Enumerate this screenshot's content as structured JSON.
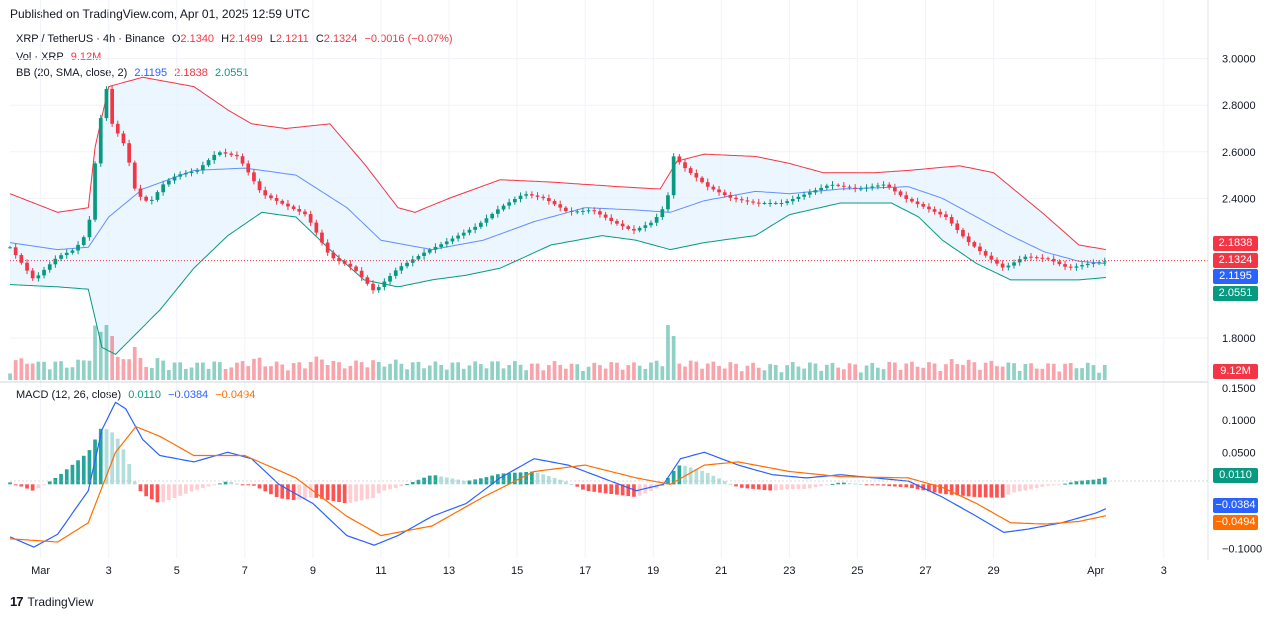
{
  "publish_text": "Published on TradingView.com, Apr 01, 2025 12:59 UTC",
  "brand": "TradingView",
  "legend": {
    "symbol": "XRP / TetherUS · 4h · Binance",
    "open_label": "O",
    "open": "2.1340",
    "high_label": "H",
    "high": "2.1499",
    "low_label": "L",
    "low": "2.1211",
    "close_label": "C",
    "close": "2.1324",
    "change": "−0.0016 (−0.07%)",
    "vol_label": "Vol · XRP",
    "vol": "9.12M",
    "bb_label": "BB (20, SMA, close, 2)",
    "bb_basis": "2.1195",
    "bb_upper": "2.1838",
    "bb_lower": "2.0551",
    "macd_label": "MACD (12, 26, close)",
    "macd": "0.0110",
    "macd_line": "−0.0384",
    "macd_signal": "−0.0494"
  },
  "badges": {
    "bb_upper": "2.1838",
    "price": "2.1324",
    "bb_basis": "2.1195",
    "bb_lower": "2.0551",
    "vol": "9.12M",
    "hist": "0.0110",
    "macd_line": "−0.0384",
    "macd_signal": "−0.0494"
  },
  "colors": {
    "up": "#089981",
    "down": "#f23645",
    "bb_upper": "#f23645",
    "bb_basis": "#2962ff",
    "bb_lower": "#089981",
    "bb_fill": "#e3f2fd",
    "macd": "#2962ff",
    "signal": "#ff6d00"
  },
  "chart_data": {
    "type": "candlestick",
    "symbol": "XRP / TetherUS",
    "interval": "4h",
    "exchange": "Binance",
    "price_ticks": [
      "3.0000",
      "2.8000",
      "2.6000",
      "2.4000",
      "1.8000"
    ],
    "price_range": [
      1.62,
      3.08
    ],
    "macd_ticks": [
      "0.1500",
      "0.1000",
      "0.0500",
      "−0.1000"
    ],
    "macd_range": [
      -0.115,
      0.155
    ],
    "x_ticks": [
      "Mar",
      "3",
      "5",
      "7",
      "9",
      "11",
      "13",
      "15",
      "17",
      "19",
      "21",
      "23",
      "25",
      "27",
      "29",
      "Apr",
      "3"
    ],
    "x_tick_days": [
      1,
      3,
      5,
      7,
      9,
      11,
      13,
      15,
      17,
      19,
      21,
      23,
      25,
      27,
      29,
      32,
      34
    ],
    "x_range_days": [
      0.1,
      35.3
    ],
    "price_key": [
      [
        0.1,
        2.19
      ],
      [
        0.8,
        2.05
      ],
      [
        1.5,
        2.15
      ],
      [
        2.0,
        2.18
      ],
      [
        2.4,
        2.26
      ],
      [
        2.6,
        2.55
      ],
      [
        2.9,
        2.9
      ],
      [
        3.1,
        2.72
      ],
      [
        3.5,
        2.62
      ],
      [
        3.8,
        2.42
      ],
      [
        4.2,
        2.38
      ],
      [
        4.6,
        2.46
      ],
      [
        5.0,
        2.5
      ],
      [
        5.6,
        2.52
      ],
      [
        6.2,
        2.6
      ],
      [
        6.8,
        2.58
      ],
      [
        7.5,
        2.42
      ],
      [
        8.2,
        2.37
      ],
      [
        8.8,
        2.33
      ],
      [
        9.5,
        2.15
      ],
      [
        10.2,
        2.1
      ],
      [
        10.8,
        2.0
      ],
      [
        11.5,
        2.1
      ],
      [
        12.3,
        2.17
      ],
      [
        13.0,
        2.22
      ],
      [
        13.8,
        2.28
      ],
      [
        14.5,
        2.36
      ],
      [
        15.2,
        2.42
      ],
      [
        15.8,
        2.4
      ],
      [
        16.5,
        2.34
      ],
      [
        17.2,
        2.35
      ],
      [
        17.8,
        2.3
      ],
      [
        18.4,
        2.26
      ],
      [
        19.0,
        2.3
      ],
      [
        19.4,
        2.38
      ],
      [
        19.6,
        2.58
      ],
      [
        20.0,
        2.52
      ],
      [
        20.6,
        2.45
      ],
      [
        21.3,
        2.4
      ],
      [
        22.0,
        2.38
      ],
      [
        22.8,
        2.38
      ],
      [
        23.5,
        2.42
      ],
      [
        24.2,
        2.46
      ],
      [
        25.0,
        2.44
      ],
      [
        25.8,
        2.46
      ],
      [
        26.4,
        2.4
      ],
      [
        27.0,
        2.36
      ],
      [
        27.6,
        2.32
      ],
      [
        28.2,
        2.22
      ],
      [
        28.8,
        2.15
      ],
      [
        29.3,
        2.1
      ],
      [
        29.9,
        2.15
      ],
      [
        30.6,
        2.14
      ],
      [
        31.2,
        2.1
      ],
      [
        31.8,
        2.12
      ],
      [
        32.3,
        2.13
      ]
    ],
    "bb_upper_key": [
      [
        0.1,
        2.42
      ],
      [
        1.5,
        2.34
      ],
      [
        2.4,
        2.36
      ],
      [
        2.6,
        2.62
      ],
      [
        3.0,
        2.88
      ],
      [
        4.0,
        2.92
      ],
      [
        5.5,
        2.88
      ],
      [
        6.5,
        2.78
      ],
      [
        7.2,
        2.72
      ],
      [
        8.2,
        2.7
      ],
      [
        9.5,
        2.72
      ],
      [
        10.5,
        2.55
      ],
      [
        11.5,
        2.36
      ],
      [
        12.0,
        2.34
      ],
      [
        13.0,
        2.4
      ],
      [
        14.5,
        2.48
      ],
      [
        16.0,
        2.47
      ],
      [
        18.0,
        2.45
      ],
      [
        19.2,
        2.44
      ],
      [
        19.7,
        2.56
      ],
      [
        20.5,
        2.59
      ],
      [
        22.0,
        2.58
      ],
      [
        23.0,
        2.55
      ],
      [
        24.0,
        2.51
      ],
      [
        25.5,
        2.51
      ],
      [
        26.5,
        2.52
      ],
      [
        28.0,
        2.54
      ],
      [
        29.0,
        2.51
      ],
      [
        30.5,
        2.33
      ],
      [
        31.5,
        2.2
      ],
      [
        32.3,
        2.18
      ]
    ],
    "bb_basis_key": [
      [
        0.1,
        2.21
      ],
      [
        1.5,
        2.18
      ],
      [
        2.4,
        2.19
      ],
      [
        3.0,
        2.32
      ],
      [
        4.0,
        2.44
      ],
      [
        5.5,
        2.52
      ],
      [
        7.0,
        2.53
      ],
      [
        8.5,
        2.5
      ],
      [
        10.0,
        2.36
      ],
      [
        11.0,
        2.22
      ],
      [
        12.5,
        2.18
      ],
      [
        14.0,
        2.22
      ],
      [
        15.5,
        2.3
      ],
      [
        17.0,
        2.36
      ],
      [
        18.5,
        2.35
      ],
      [
        19.5,
        2.34
      ],
      [
        20.5,
        2.39
      ],
      [
        22.0,
        2.43
      ],
      [
        23.0,
        2.42
      ],
      [
        24.5,
        2.44
      ],
      [
        26.5,
        2.45
      ],
      [
        27.5,
        2.4
      ],
      [
        28.5,
        2.32
      ],
      [
        29.5,
        2.24
      ],
      [
        30.5,
        2.17
      ],
      [
        31.5,
        2.13
      ],
      [
        32.3,
        2.12
      ]
    ],
    "bb_lower_key": [
      [
        0.1,
        2.03
      ],
      [
        1.5,
        2.02
      ],
      [
        2.4,
        2.01
      ],
      [
        2.8,
        1.76
      ],
      [
        3.2,
        1.73
      ],
      [
        4.5,
        1.92
      ],
      [
        5.5,
        2.1
      ],
      [
        6.5,
        2.24
      ],
      [
        7.5,
        2.34
      ],
      [
        8.5,
        2.32
      ],
      [
        9.5,
        2.18
      ],
      [
        10.5,
        2.05
      ],
      [
        11.5,
        2.02
      ],
      [
        12.5,
        2.05
      ],
      [
        13.5,
        2.07
      ],
      [
        14.5,
        2.1
      ],
      [
        16.0,
        2.2
      ],
      [
        17.5,
        2.24
      ],
      [
        18.5,
        2.22
      ],
      [
        19.5,
        2.18
      ],
      [
        20.5,
        2.21
      ],
      [
        22.0,
        2.24
      ],
      [
        23.0,
        2.33
      ],
      [
        24.5,
        2.38
      ],
      [
        26.0,
        2.38
      ],
      [
        26.8,
        2.32
      ],
      [
        27.5,
        2.22
      ],
      [
        28.5,
        2.12
      ],
      [
        29.5,
        2.05
      ],
      [
        30.5,
        2.05
      ],
      [
        31.5,
        2.05
      ],
      [
        32.3,
        2.06
      ]
    ],
    "volume_spikes": [
      [
        2.9,
        1.0
      ],
      [
        3.1,
        0.8
      ],
      [
        19.5,
        1.0
      ]
    ],
    "macd_key": [
      [
        0.1,
        -0.082
      ],
      [
        0.8,
        -0.098
      ],
      [
        1.5,
        -0.078
      ],
      [
        2.0,
        -0.04
      ],
      [
        2.4,
        -0.01
      ],
      [
        2.8,
        0.085
      ],
      [
        3.2,
        0.128
      ],
      [
        3.5,
        0.118
      ],
      [
        4.0,
        0.07
      ],
      [
        4.5,
        0.045
      ],
      [
        5.5,
        0.035
      ],
      [
        6.5,
        0.05
      ],
      [
        7.2,
        0.04
      ],
      [
        8.0,
        0.0
      ],
      [
        9.0,
        -0.03
      ],
      [
        10.0,
        -0.08
      ],
      [
        10.8,
        -0.095
      ],
      [
        11.5,
        -0.08
      ],
      [
        12.5,
        -0.05
      ],
      [
        13.5,
        -0.03
      ],
      [
        14.5,
        0.01
      ],
      [
        15.5,
        0.04
      ],
      [
        16.5,
        0.03
      ],
      [
        17.5,
        0.01
      ],
      [
        18.5,
        -0.01
      ],
      [
        19.3,
        0.0
      ],
      [
        19.8,
        0.04
      ],
      [
        20.5,
        0.05
      ],
      [
        21.5,
        0.03
      ],
      [
        22.5,
        0.015
      ],
      [
        23.5,
        0.01
      ],
      [
        24.5,
        0.015
      ],
      [
        25.5,
        0.01
      ],
      [
        26.5,
        0.005
      ],
      [
        27.5,
        -0.02
      ],
      [
        28.5,
        -0.05
      ],
      [
        29.3,
        -0.075
      ],
      [
        30.0,
        -0.07
      ],
      [
        31.0,
        -0.06
      ],
      [
        32.0,
        -0.045
      ],
      [
        32.3,
        -0.038
      ]
    ],
    "signal_key": [
      [
        0.1,
        -0.085
      ],
      [
        1.5,
        -0.09
      ],
      [
        2.4,
        -0.06
      ],
      [
        3.2,
        0.05
      ],
      [
        3.8,
        0.09
      ],
      [
        4.5,
        0.075
      ],
      [
        5.5,
        0.045
      ],
      [
        7.0,
        0.045
      ],
      [
        8.5,
        0.01
      ],
      [
        10.0,
        -0.05
      ],
      [
        11.0,
        -0.08
      ],
      [
        12.5,
        -0.065
      ],
      [
        14.0,
        -0.02
      ],
      [
        15.5,
        0.02
      ],
      [
        17.0,
        0.03
      ],
      [
        18.5,
        0.01
      ],
      [
        19.5,
        0.0
      ],
      [
        20.5,
        0.03
      ],
      [
        21.5,
        0.035
      ],
      [
        23.0,
        0.02
      ],
      [
        24.5,
        0.012
      ],
      [
        26.5,
        0.01
      ],
      [
        27.5,
        -0.005
      ],
      [
        28.5,
        -0.03
      ],
      [
        29.5,
        -0.06
      ],
      [
        30.5,
        -0.062
      ],
      [
        31.5,
        -0.058
      ],
      [
        32.3,
        -0.049
      ]
    ]
  }
}
